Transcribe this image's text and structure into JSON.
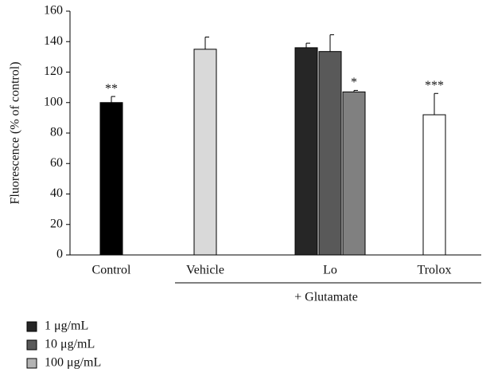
{
  "chart_data": {
    "type": "bar",
    "ylabel": "Fluorescence (% of control)",
    "ylim": [
      0,
      160
    ],
    "yticks": [
      0,
      20,
      40,
      60,
      80,
      100,
      120,
      140,
      160
    ],
    "categories": [
      {
        "name": "Control",
        "bars": [
          {
            "value": 100,
            "error": 4,
            "color": "#000000",
            "annotation": "**"
          }
        ]
      },
      {
        "name": "Vehicle",
        "bars": [
          {
            "value": 135,
            "error": 8,
            "color": "#d9d9d9"
          }
        ]
      },
      {
        "name": "Lo",
        "bars": [
          {
            "value": 136,
            "error": 3,
            "color": "#262626"
          },
          {
            "value": 133.5,
            "error": 11,
            "color": "#595959"
          },
          {
            "value": 107,
            "error": 1,
            "color": "#808080",
            "annotation": "*"
          }
        ]
      },
      {
        "name": "Trolox",
        "bars": [
          {
            "value": 92,
            "error": 14,
            "color": "#ffffff",
            "annotation": "***"
          }
        ]
      }
    ],
    "group_label": "+ Glutamate",
    "legend": [
      {
        "label": "1 μg/mL",
        "color": "#262626"
      },
      {
        "label": "10 μg/mL",
        "color": "#595959"
      },
      {
        "label": "100 μg/mL",
        "color": "#b3b3b3"
      }
    ]
  }
}
